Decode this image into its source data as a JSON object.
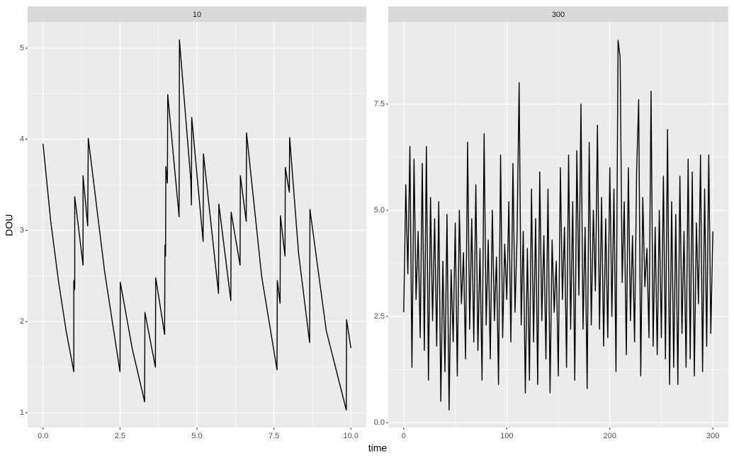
{
  "chart_data": {
    "type": "line",
    "x_label": "time",
    "y_label": "DOU",
    "color": "#000000",
    "grid": true,
    "panels": [
      {
        "title": "10",
        "xlim": [
          -0.5,
          10.5
        ],
        "ylim": [
          0.837,
          5.287
        ],
        "xticks": [
          {
            "value": 0,
            "label": "0.0"
          },
          {
            "value": 2.5,
            "label": "2.5"
          },
          {
            "value": 5,
            "label": "5.0"
          },
          {
            "value": 7.5,
            "label": "7.5"
          },
          {
            "value": 10,
            "label": "10.0"
          }
        ],
        "yticks": [
          1,
          2,
          3,
          4,
          5
        ],
        "x": [
          0,
          0.25,
          0.5,
          0.75,
          1.0,
          1.0,
          1.03,
          1.03,
          1.3,
          1.3,
          1.45,
          1.47,
          2.0,
          2.5,
          2.51,
          2.9,
          3.3,
          3.31,
          3.65,
          3.66,
          3.95,
          3.96,
          3.98,
          3.99,
          4.04,
          4.05,
          4.42,
          4.43,
          4.8,
          4.82,
          4.83,
          5.2,
          5.21,
          5.7,
          5.71,
          6.1,
          6.11,
          6.4,
          6.41,
          6.6,
          6.61,
          7.1,
          7.6,
          7.61,
          7.7,
          7.71,
          7.86,
          7.87,
          8.0,
          8.01,
          8.3,
          8.66,
          8.67,
          9.2,
          9.85,
          9.86,
          10.0
        ],
        "values": [
          3.95,
          3.1,
          2.45,
          1.9,
          1.45,
          2.45,
          2.35,
          3.37,
          2.62,
          3.6,
          3.05,
          4.01,
          2.55,
          1.45,
          2.43,
          1.7,
          1.12,
          2.1,
          1.5,
          2.48,
          1.86,
          2.84,
          2.72,
          3.7,
          3.52,
          4.49,
          3.15,
          5.09,
          3.55,
          3.28,
          4.24,
          2.88,
          3.84,
          2.31,
          3.29,
          2.23,
          3.2,
          2.62,
          3.6,
          3.1,
          4.07,
          2.5,
          1.47,
          2.45,
          2.2,
          3.16,
          2.72,
          3.69,
          3.42,
          4.02,
          2.75,
          1.77,
          3.23,
          1.9,
          1.03,
          2.02,
          1.71
        ]
      },
      {
        "title": "300",
        "xlim": [
          -15,
          315
        ],
        "ylim": [
          -0.117,
          9.433
        ],
        "xticks": [
          0,
          100,
          200,
          300
        ],
        "yticks": [
          {
            "value": 0,
            "label": "0.0"
          },
          {
            "value": 2.5,
            "label": "2.5"
          },
          {
            "value": 5,
            "label": "5.0"
          },
          {
            "value": 7.5,
            "label": "7.5"
          }
        ],
        "x": [
          0,
          2,
          4,
          6,
          8,
          10,
          12,
          14,
          16,
          18,
          20,
          22,
          24,
          26,
          28,
          30,
          32,
          34,
          36,
          38,
          40,
          42,
          44,
          46,
          48,
          50,
          52,
          54,
          56,
          58,
          60,
          62,
          64,
          66,
          68,
          70,
          72,
          74,
          76,
          78,
          80,
          82,
          84,
          86,
          88,
          90,
          92,
          94,
          96,
          98,
          100,
          102,
          104,
          106,
          108,
          110,
          112,
          114,
          116,
          118,
          120,
          122,
          124,
          126,
          128,
          130,
          132,
          134,
          136,
          138,
          140,
          142,
          144,
          146,
          148,
          150,
          152,
          154,
          156,
          158,
          160,
          162,
          164,
          166,
          168,
          170,
          172,
          174,
          176,
          178,
          180,
          182,
          184,
          186,
          188,
          190,
          192,
          194,
          196,
          198,
          200,
          202,
          204,
          206,
          208,
          210,
          212,
          214,
          216,
          218,
          220,
          222,
          224,
          226,
          228,
          230,
          232,
          234,
          236,
          238,
          240,
          242,
          244,
          246,
          248,
          250,
          252,
          254,
          256,
          258,
          260,
          262,
          264,
          266,
          268,
          270,
          272,
          274,
          276,
          278,
          280,
          282,
          284,
          286,
          288,
          290,
          292,
          294,
          296,
          298,
          300
        ],
        "values": [
          2.6,
          5.6,
          3.5,
          6.5,
          1.3,
          6.2,
          2.9,
          4.5,
          2.0,
          6.1,
          1.7,
          6.5,
          1.0,
          5.3,
          2.4,
          4.8,
          1.8,
          5.2,
          0.5,
          3.8,
          1.2,
          4.9,
          0.3,
          3.6,
          1.9,
          4.7,
          1.1,
          5.0,
          2.8,
          4.0,
          1.5,
          6.6,
          2.2,
          4.8,
          1.9,
          5.6,
          1.7,
          4.1,
          1.0,
          6.8,
          2.3,
          4.3,
          1.5,
          5.0,
          2.4,
          3.9,
          0.9,
          6.3,
          2.0,
          4.2,
          2.9,
          5.2,
          1.9,
          6.1,
          2.6,
          4.4,
          8.0,
          2.3,
          4.5,
          0.7,
          4.1,
          1.0,
          5.5,
          1.9,
          4.8,
          0.9,
          5.9,
          2.4,
          4.4,
          1.5,
          5.5,
          0.7,
          4.3,
          2.6,
          3.8,
          1.1,
          6.0,
          2.9,
          4.6,
          1.3,
          6.3,
          2.2,
          5.2,
          1.0,
          6.4,
          3.0,
          7.5,
          2.2,
          4.6,
          0.8,
          6.6,
          2.3,
          5.0,
          3.1,
          7.0,
          2.2,
          5.3,
          1.8,
          4.8,
          2.0,
          6.0,
          2.5,
          5.5,
          1.2,
          9.0,
          8.6,
          3.3,
          5.2,
          1.6,
          6.0,
          2.4,
          4.4,
          1.9,
          5.9,
          7.6,
          1.1,
          5.3,
          3.2,
          4.1,
          2.0,
          7.8,
          1.8,
          4.6,
          1.6,
          5.0,
          2.0,
          5.8,
          1.5,
          6.9,
          0.9,
          5.2,
          1.3,
          4.9,
          0.9,
          5.8,
          2.1,
          4.5,
          1.3,
          6.2,
          1.5,
          5.9,
          1.1,
          4.7,
          2.8,
          6.3,
          1.2,
          5.5,
          1.8,
          6.3,
          2.1,
          4.5
        ]
      }
    ]
  }
}
